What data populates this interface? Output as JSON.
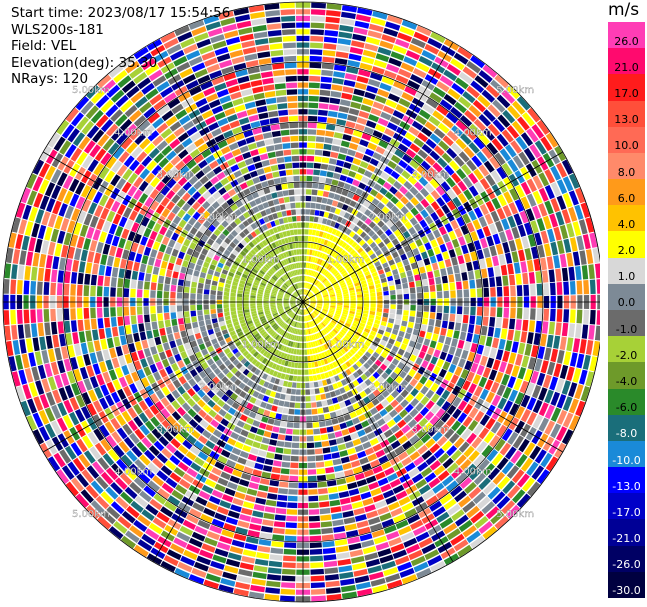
{
  "info": {
    "start_time": "Start time: 2023/08/17 15:54:56",
    "instrument": "WLS200s-181",
    "field": "Field: VEL",
    "elevation": "Elevation(deg): 35.30",
    "nrays": "NRays: 120"
  },
  "colorbar": {
    "unit": "m/s",
    "entries": [
      {
        "label": "26.0",
        "color": "#ff3db5"
      },
      {
        "label": "21.0",
        "color": "#ff0a6e"
      },
      {
        "label": "17.0",
        "color": "#ff1c1c"
      },
      {
        "label": "13.0",
        "color": "#ff4f3a"
      },
      {
        "label": "10.0",
        "color": "#ff6a55"
      },
      {
        "label": "8.0",
        "color": "#ff8a6a"
      },
      {
        "label": "6.0",
        "color": "#ff9a1a"
      },
      {
        "label": "4.0",
        "color": "#ffc200"
      },
      {
        "label": "2.0",
        "color": "#ffff00"
      },
      {
        "label": "1.0",
        "color": "#d8d8d8"
      },
      {
        "label": "0.0",
        "color": "#7d8a96"
      },
      {
        "label": "-1.0",
        "color": "#6b6b6b"
      },
      {
        "label": "-2.0",
        "color": "#a7d137"
      },
      {
        "label": "-4.0",
        "color": "#6e9a2a"
      },
      {
        "label": "-6.0",
        "color": "#2a8a2a"
      },
      {
        "label": "-8.0",
        "color": "#1a6e7a"
      },
      {
        "label": "-10.0",
        "color": "#1a8ad8"
      },
      {
        "label": "-13.0",
        "color": "#0000ff"
      },
      {
        "label": "-17.0",
        "color": "#0000c8"
      },
      {
        "label": "-21.0",
        "color": "#000096"
      },
      {
        "label": "-26.0",
        "color": "#000064"
      },
      {
        "label": "-30.0",
        "color": "#000040"
      }
    ]
  },
  "range_labels": [
    {
      "text": "1.00km"
    },
    {
      "text": "2.00km"
    },
    {
      "text": "3.00km"
    },
    {
      "text": "4.00km"
    },
    {
      "text": "5.00km"
    }
  ]
}
